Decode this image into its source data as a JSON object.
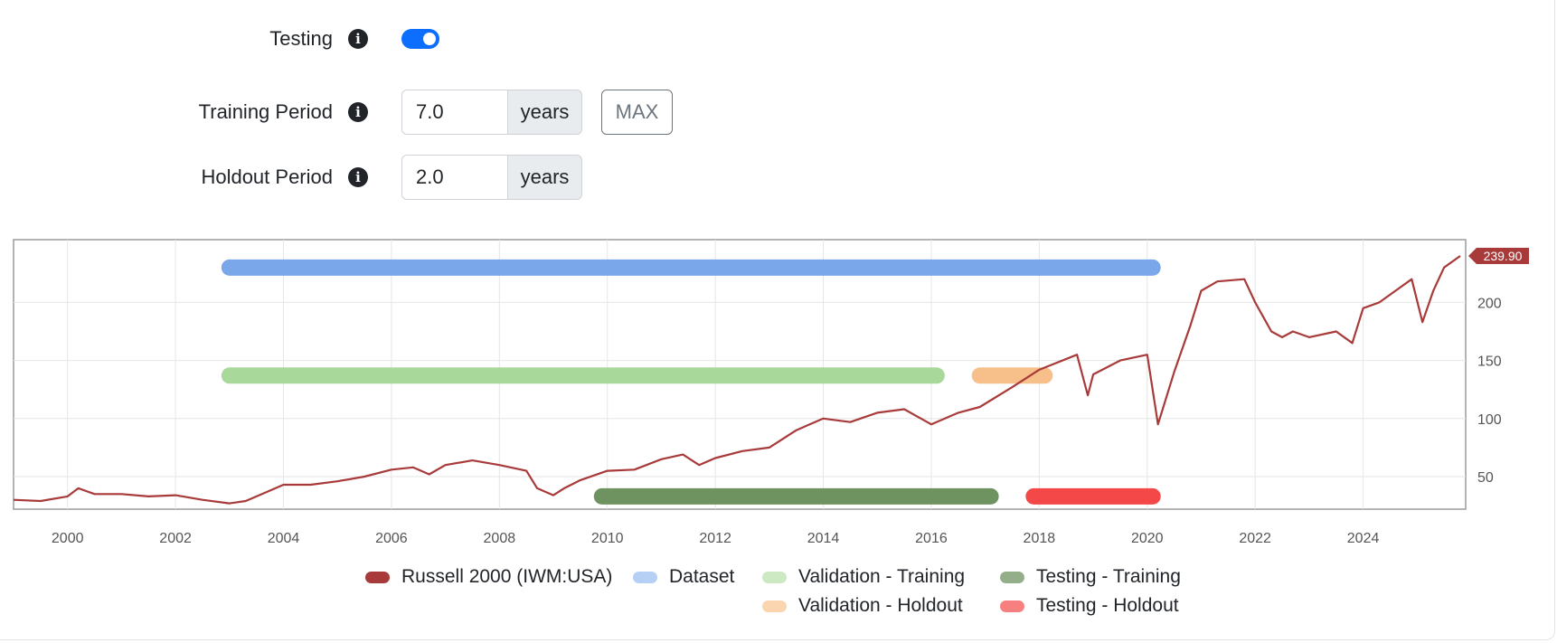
{
  "form": {
    "testing": {
      "label": "Testing",
      "enabled": true
    },
    "training_period": {
      "label": "Training Period",
      "value": "7.0",
      "unit": "years",
      "max_label": "MAX"
    },
    "holdout_period": {
      "label": "Holdout Period",
      "value": "2.0",
      "unit": "years"
    }
  },
  "colors": {
    "accent": "#0d6efd",
    "price_line": "#a83a3a",
    "dataset": "#7aa6ea",
    "validation_training": "#a8d99a",
    "validation_holdout": "#f7c08a",
    "testing_training": "#6e9360",
    "testing_holdout": "#f44848"
  },
  "chart_data": {
    "type": "line",
    "series": [
      {
        "name": "Russell 2000 (IWM:USA)",
        "x": [
          1999.0,
          1999.5,
          2000.0,
          2000.2,
          2000.5,
          2001.0,
          2001.5,
          2002.0,
          2002.5,
          2003.0,
          2003.3,
          2003.7,
          2004.0,
          2004.5,
          2005.0,
          2005.5,
          2006.0,
          2006.4,
          2006.7,
          2007.0,
          2007.5,
          2008.0,
          2008.5,
          2008.7,
          2009.0,
          2009.2,
          2009.5,
          2010.0,
          2010.5,
          2011.0,
          2011.4,
          2011.7,
          2012.0,
          2012.5,
          2013.0,
          2013.5,
          2014.0,
          2014.5,
          2015.0,
          2015.5,
          2016.0,
          2016.5,
          2016.9,
          2017.5,
          2018.0,
          2018.7,
          2018.9,
          2019.0,
          2019.5,
          2020.0,
          2020.2,
          2020.5,
          2020.8,
          2021.0,
          2021.3,
          2021.8,
          2022.0,
          2022.3,
          2022.5,
          2022.7,
          2023.0,
          2023.5,
          2023.8,
          2024.0,
          2024.3,
          2024.6,
          2024.9,
          2025.1,
          2025.3,
          2025.5,
          2025.8
        ],
        "values": [
          30,
          29,
          33,
          40,
          35,
          35,
          33,
          34,
          30,
          27,
          29,
          37,
          43,
          43,
          46,
          50,
          56,
          58,
          52,
          60,
          64,
          60,
          55,
          40,
          34,
          40,
          47,
          55,
          56,
          65,
          69,
          60,
          66,
          72,
          75,
          90,
          100,
          97,
          105,
          108,
          95,
          105,
          110,
          127,
          142,
          155,
          120,
          138,
          150,
          155,
          95,
          140,
          180,
          210,
          218,
          220,
          200,
          175,
          170,
          175,
          170,
          175,
          165,
          195,
          200,
          210,
          220,
          183,
          210,
          230,
          240
        ]
      }
    ],
    "periods": [
      {
        "name": "Dataset",
        "start": 2003.0,
        "end": 2020.1,
        "row": 230
      },
      {
        "name": "Validation - Training",
        "start": 2003.0,
        "end": 2016.1,
        "row": 137
      },
      {
        "name": "Validation - Holdout",
        "start": 2016.9,
        "end": 2018.1,
        "row": 137
      },
      {
        "name": "Testing - Training",
        "start": 2009.9,
        "end": 2017.1,
        "row": 33
      },
      {
        "name": "Testing - Holdout",
        "start": 2017.9,
        "end": 2020.1,
        "row": 33
      }
    ],
    "x_ticks": [
      "2000",
      "2002",
      "2004",
      "2006",
      "2008",
      "2010",
      "2012",
      "2014",
      "2016",
      "2018",
      "2020",
      "2022",
      "2024"
    ],
    "y_ticks": [
      "50",
      "100",
      "150",
      "200"
    ],
    "xlim": [
      1999.0,
      2025.9
    ],
    "ylim": [
      22,
      254
    ],
    "last_value_label": "239.90",
    "grid": true,
    "legend_position": "bottom",
    "legend": [
      "Russell 2000 (IWM:USA)",
      "Dataset",
      "Validation - Training",
      "Testing - Training",
      "Validation - Holdout",
      "Testing - Holdout"
    ]
  }
}
